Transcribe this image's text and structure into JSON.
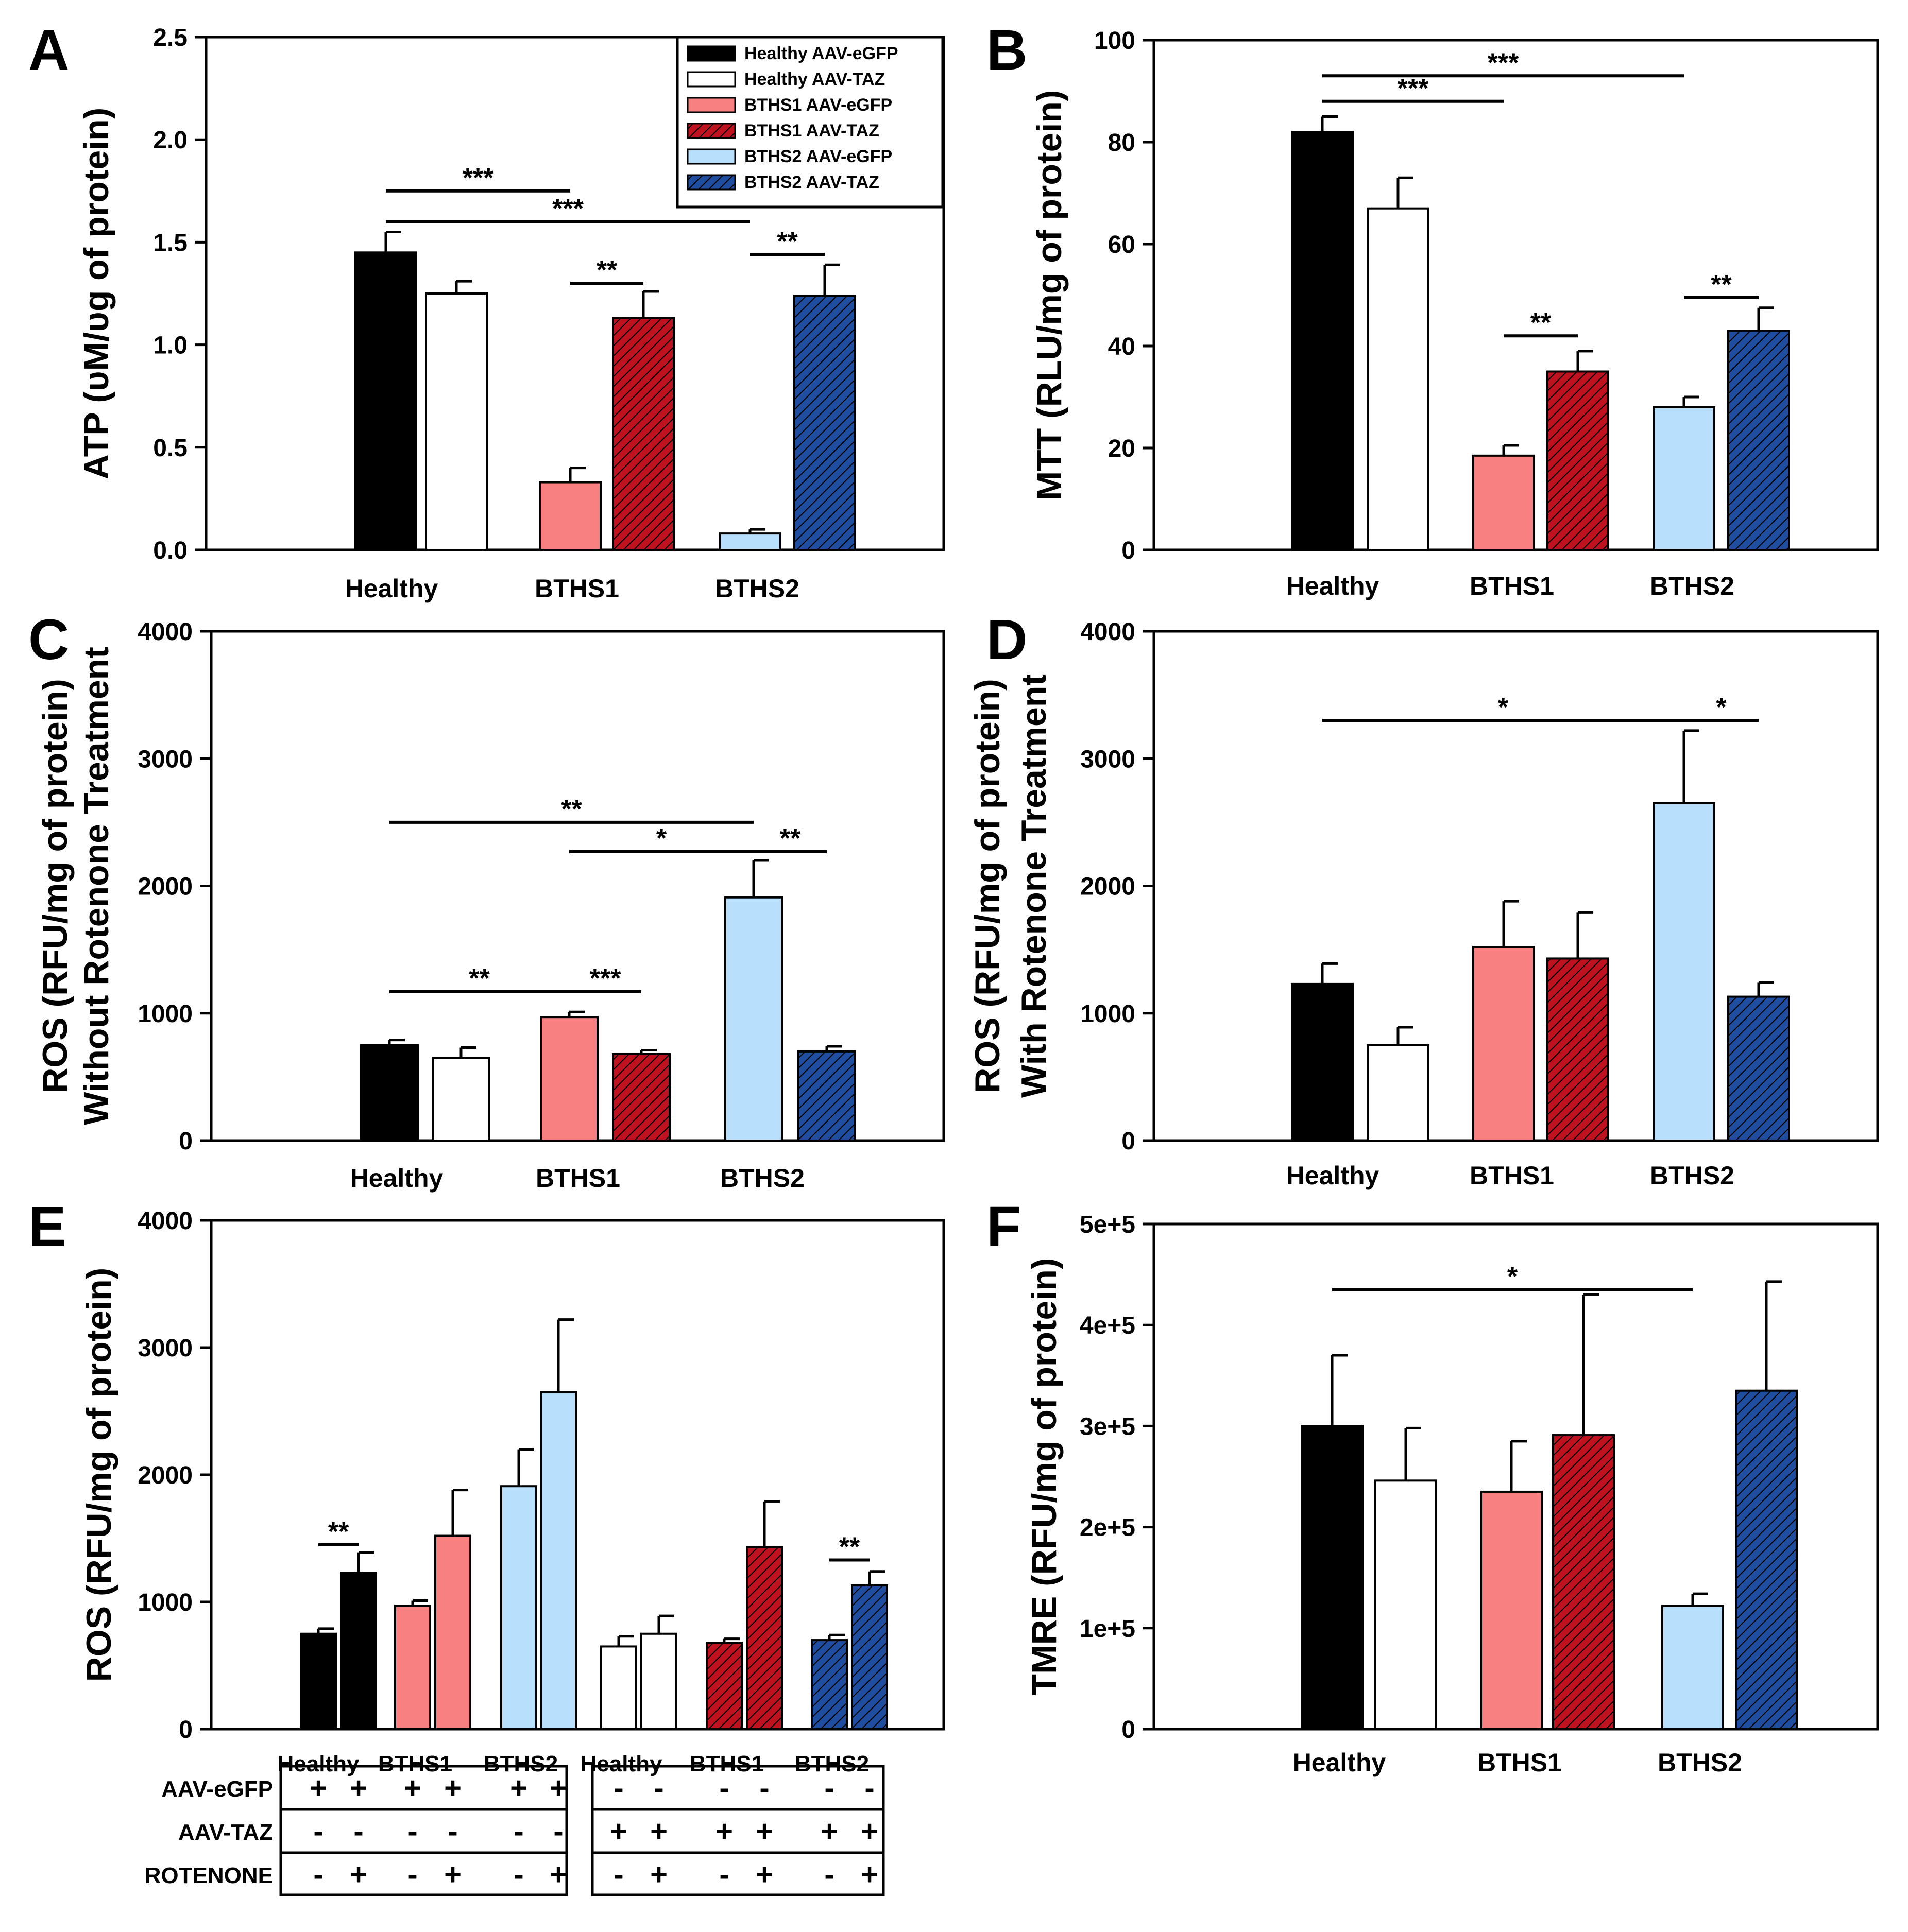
{
  "legend": {
    "entries": [
      {
        "label": "Healthy AAV-eGFP",
        "style": "g-healthy"
      },
      {
        "label": "Healthy AAV-TAZ",
        "style": "t-healthy"
      },
      {
        "label": "BTHS1 AAV-eGFP",
        "style": "g-b1"
      },
      {
        "label": "BTHS1 AAV-TAZ",
        "style": "t-b1"
      },
      {
        "label": "BTHS2 AAV-eGFP",
        "style": "g-b2"
      },
      {
        "label": "BTHS2 AAV-TAZ",
        "style": "t-b2"
      }
    ]
  },
  "styles": {
    "g-healthy": {
      "fill": "#000000",
      "hatch": false
    },
    "t-healthy": {
      "fill": "#ffffff",
      "hatch": false
    },
    "g-b1": {
      "fill": "#f88080",
      "hatch": false
    },
    "t-b1": {
      "fill": "#c0121e",
      "hatch": true
    },
    "g-b2": {
      "fill": "#b8e0fc",
      "hatch": false
    },
    "t-b2": {
      "fill": "#1f4ea0",
      "hatch": true
    }
  },
  "panel_e_table": {
    "groups": [
      {
        "rows": [
          [
            "+",
            "+",
            "+",
            "+",
            "+",
            "+"
          ],
          [
            "-",
            "-",
            "-",
            "-",
            "-",
            "-"
          ],
          [
            "-",
            "+",
            "-",
            "+",
            "-",
            "+"
          ]
        ]
      },
      {
        "rows": [
          [
            "-",
            "-",
            "-",
            "-",
            "-",
            "-"
          ],
          [
            "+",
            "+",
            "+",
            "+",
            "+",
            "+"
          ],
          [
            "-",
            "+",
            "-",
            "+",
            "-",
            "+"
          ]
        ]
      }
    ],
    "row_labels": [
      "AAV-eGFP",
      "AAV-TAZ",
      "ROTENONE"
    ]
  },
  "chart_data": [
    {
      "panel": "A",
      "type": "bar",
      "ylabel": "ATP (υM/υg of protein)",
      "ylim": [
        0,
        2.5
      ],
      "yticks": [
        "0.0",
        "0.5",
        "1.0",
        "1.5",
        "2.0",
        "2.5"
      ],
      "categories": [
        "Healthy",
        "BTHS1",
        "BTHS2"
      ],
      "bars": [
        {
          "group": 0,
          "style": "g-healthy",
          "value": 1.45,
          "err": 0.1
        },
        {
          "group": 0,
          "style": "t-healthy",
          "value": 1.25,
          "err": 0.06
        },
        {
          "group": 1,
          "style": "g-b1",
          "value": 0.33,
          "err": 0.07
        },
        {
          "group": 1,
          "style": "t-b1",
          "value": 1.13,
          "err": 0.13
        },
        {
          "group": 2,
          "style": "g-b2",
          "value": 0.08,
          "err": 0.02
        },
        {
          "group": 2,
          "style": "t-b2",
          "value": 1.24,
          "err": 0.15
        }
      ],
      "annotations": [
        {
          "from": 0,
          "to": 2,
          "y": 1.75,
          "label": "***"
        },
        {
          "from": 0,
          "to": 4,
          "y": 1.6,
          "label": "***"
        },
        {
          "from": 2,
          "to": 3,
          "y": 1.3,
          "label": "**"
        },
        {
          "from": 4,
          "to": 5,
          "y": 1.44,
          "label": "**"
        }
      ]
    },
    {
      "panel": "B",
      "type": "bar",
      "ylabel": "MTT (RLU/mg of protein)",
      "ylim": [
        0,
        100
      ],
      "yticks": [
        "0",
        "20",
        "40",
        "60",
        "80",
        "100"
      ],
      "categories": [
        "Healthy",
        "BTHS1",
        "BTHS2"
      ],
      "bars": [
        {
          "group": 0,
          "style": "g-healthy",
          "value": 82,
          "err": 3
        },
        {
          "group": 0,
          "style": "t-healthy",
          "value": 67,
          "err": 6
        },
        {
          "group": 1,
          "style": "g-b1",
          "value": 18.5,
          "err": 2
        },
        {
          "group": 1,
          "style": "t-b1",
          "value": 35,
          "err": 4
        },
        {
          "group": 2,
          "style": "g-b2",
          "value": 28,
          "err": 2
        },
        {
          "group": 2,
          "style": "t-b2",
          "value": 43,
          "err": 4.5
        }
      ],
      "annotations": [
        {
          "from": 0,
          "to": 4,
          "y": 93,
          "label": "***"
        },
        {
          "from": 0,
          "to": 2,
          "y": 88,
          "label": "***"
        },
        {
          "from": 2,
          "to": 3,
          "y": 42,
          "label": "**"
        },
        {
          "from": 4,
          "to": 5,
          "y": 49.5,
          "label": "**"
        }
      ]
    },
    {
      "panel": "C",
      "type": "bar",
      "ylabel": "ROS (RFU/mg of protein)",
      "ylabel2": "Without Rotenone Treatment",
      "ylim": [
        0,
        4000
      ],
      "yticks": [
        "0",
        "1000",
        "2000",
        "3000",
        "4000"
      ],
      "categories": [
        "Healthy",
        "BTHS1",
        "BTHS2"
      ],
      "bars": [
        {
          "group": 0,
          "style": "g-healthy",
          "value": 750,
          "err": 40
        },
        {
          "group": 0,
          "style": "t-healthy",
          "value": 650,
          "err": 80
        },
        {
          "group": 1,
          "style": "g-b1",
          "value": 970,
          "err": 40
        },
        {
          "group": 1,
          "style": "t-b1",
          "value": 680,
          "err": 30
        },
        {
          "group": 2,
          "style": "g-b2",
          "value": 1910,
          "err": 290
        },
        {
          "group": 2,
          "style": "t-b2",
          "value": 700,
          "err": 40
        }
      ],
      "annotations": [
        {
          "from": 0,
          "to": 4,
          "y": 2500,
          "label": "**"
        },
        {
          "from": 2,
          "to": 4,
          "y": 2270,
          "label": "*"
        },
        {
          "from": 4,
          "to": 5,
          "y": 2270,
          "label": "**"
        },
        {
          "from": 0,
          "to": 2,
          "y": 1170,
          "label": "**"
        },
        {
          "from": 2,
          "to": 3,
          "y": 1170,
          "label": "***"
        }
      ]
    },
    {
      "panel": "D",
      "type": "bar",
      "ylabel": "ROS (RFU/mg of protein)",
      "ylabel2": "With Rotenone Treatment",
      "ylim": [
        0,
        4000
      ],
      "yticks": [
        "0",
        "1000",
        "2000",
        "3000",
        "4000"
      ],
      "categories": [
        "Healthy",
        "BTHS1",
        "BTHS2"
      ],
      "bars": [
        {
          "group": 0,
          "style": "g-healthy",
          "value": 1230,
          "err": 160
        },
        {
          "group": 0,
          "style": "t-healthy",
          "value": 750,
          "err": 140
        },
        {
          "group": 1,
          "style": "g-b1",
          "value": 1520,
          "err": 360
        },
        {
          "group": 1,
          "style": "t-b1",
          "value": 1430,
          "err": 360
        },
        {
          "group": 2,
          "style": "g-b2",
          "value": 2650,
          "err": 570
        },
        {
          "group": 2,
          "style": "t-b2",
          "value": 1130,
          "err": 110
        }
      ],
      "annotations": [
        {
          "from": 0,
          "to": 4,
          "y": 3300,
          "label": "*"
        },
        {
          "from": 4,
          "to": 5,
          "y": 3300,
          "label": "*"
        }
      ]
    },
    {
      "panel": "E",
      "type": "bar",
      "ylabel": "ROS (RFU/mg of protein)",
      "ylim": [
        0,
        4000
      ],
      "yticks": [
        "0",
        "1000",
        "2000",
        "3000",
        "4000"
      ],
      "categories": [
        "Healthy",
        "BTHS1",
        "BTHS2",
        "Healthy",
        "BTHS1",
        "BTHS2"
      ],
      "bars": [
        {
          "group": 0,
          "style": "g-healthy",
          "value": 750,
          "err": 40
        },
        {
          "group": 0,
          "style": "g-healthy",
          "value": 1230,
          "err": 160
        },
        {
          "group": 1,
          "style": "g-b1",
          "value": 970,
          "err": 40
        },
        {
          "group": 1,
          "style": "g-b1",
          "value": 1520,
          "err": 360
        },
        {
          "group": 2,
          "style": "g-b2",
          "value": 1910,
          "err": 290
        },
        {
          "group": 2,
          "style": "g-b2",
          "value": 2650,
          "err": 570
        },
        {
          "group": 3,
          "style": "t-healthy",
          "value": 650,
          "err": 80
        },
        {
          "group": 3,
          "style": "t-healthy",
          "value": 750,
          "err": 140
        },
        {
          "group": 4,
          "style": "t-b1",
          "value": 680,
          "err": 30
        },
        {
          "group": 4,
          "style": "t-b1",
          "value": 1430,
          "err": 360
        },
        {
          "group": 5,
          "style": "t-b2",
          "value": 700,
          "err": 40
        },
        {
          "group": 5,
          "style": "t-b2",
          "value": 1130,
          "err": 110
        }
      ],
      "annotations": [
        {
          "from": 0,
          "to": 1,
          "y": 1450,
          "label": "**"
        },
        {
          "from": 10,
          "to": 11,
          "y": 1330,
          "label": "**"
        }
      ]
    },
    {
      "panel": "F",
      "type": "bar",
      "ylabel": "TMRE (RFU/mg of protein)",
      "ylim": [
        0,
        500000
      ],
      "yticks": [
        "0",
        "1e+5",
        "2e+5",
        "3e+5",
        "4e+5",
        "5e+5"
      ],
      "categories": [
        "Healthy",
        "BTHS1",
        "BTHS2"
      ],
      "bars": [
        {
          "group": 0,
          "style": "g-healthy",
          "value": 300000,
          "err": 70000
        },
        {
          "group": 0,
          "style": "t-healthy",
          "value": 246000,
          "err": 52000
        },
        {
          "group": 1,
          "style": "g-b1",
          "value": 235000,
          "err": 50000
        },
        {
          "group": 1,
          "style": "t-b1",
          "value": 291000,
          "err": 139000
        },
        {
          "group": 2,
          "style": "g-b2",
          "value": 122000,
          "err": 12000
        },
        {
          "group": 2,
          "style": "t-b2",
          "value": 335000,
          "err": 108000
        }
      ],
      "annotations": [
        {
          "from": 0,
          "to": 4,
          "y": 435000,
          "label": "*"
        }
      ]
    }
  ]
}
